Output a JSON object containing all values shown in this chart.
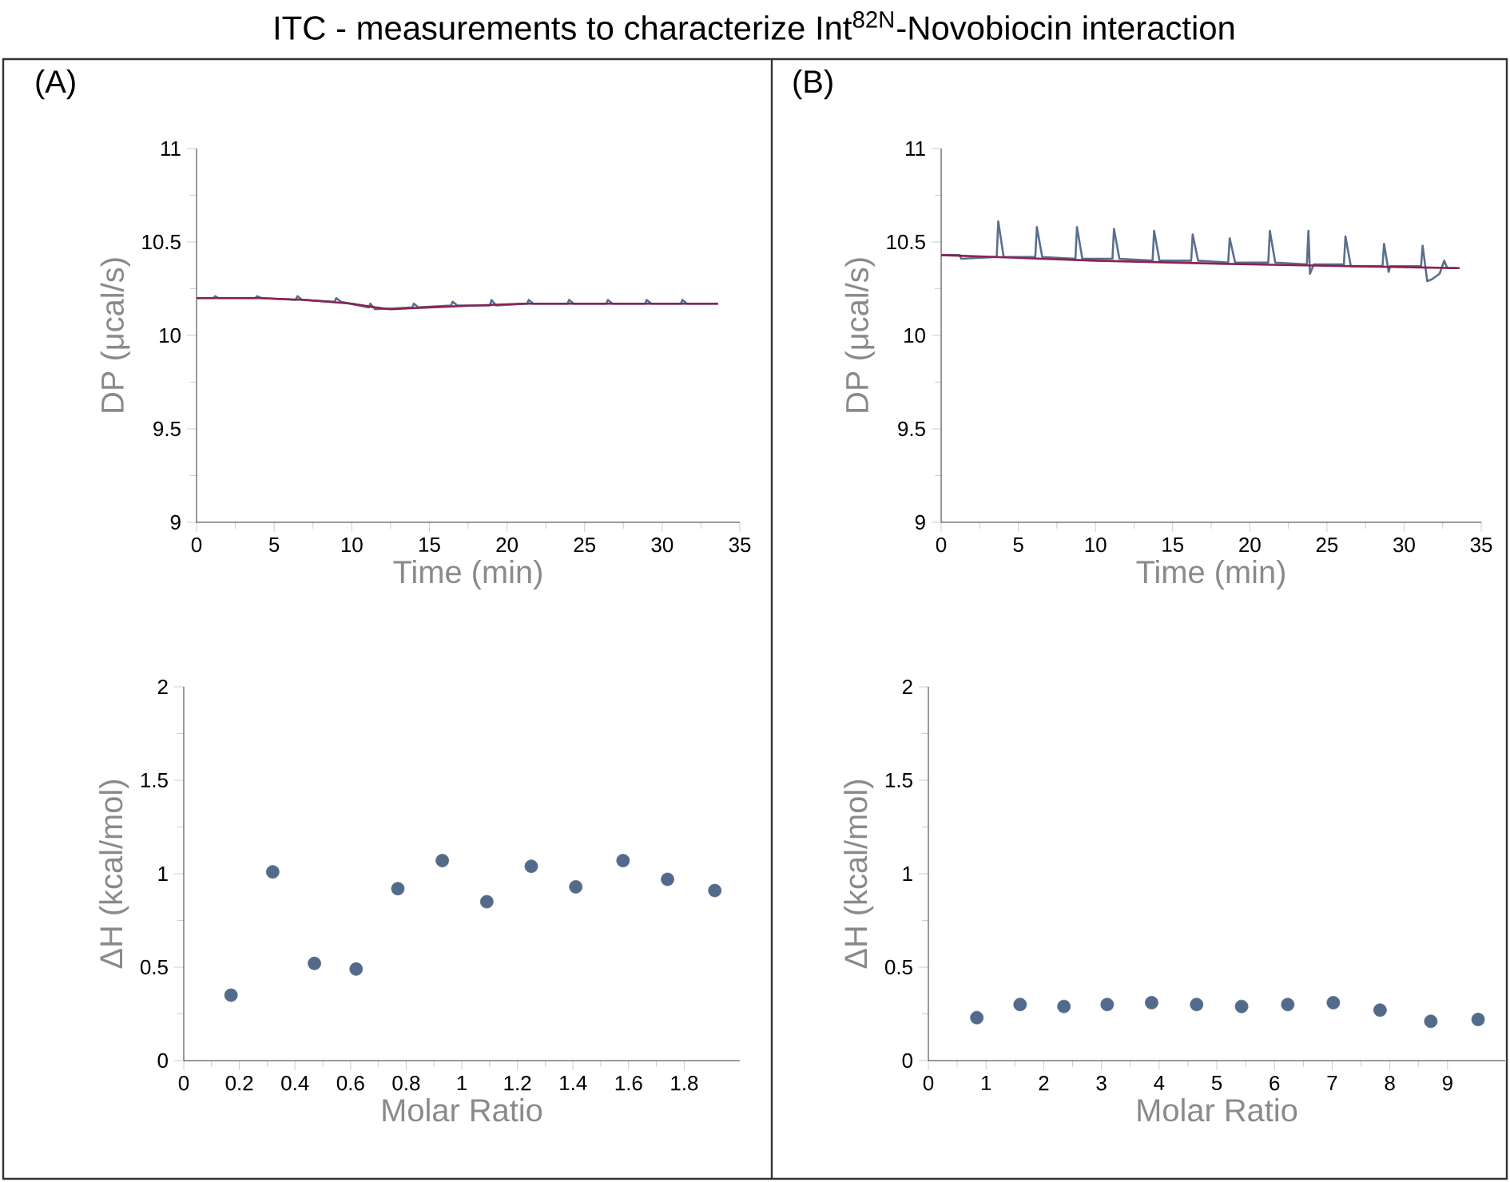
{
  "chart_data": [
    {
      "type": "line",
      "title": "ITC - measurements to characterize Int$^{82N}$-Novobiocin interaction",
      "annotations": [
        "(A)"
      ],
      "xlabel": "Time (min)",
      "ylabel": "DP (μcal/s)",
      "xlim": [
        0,
        35
      ],
      "ylim": [
        9,
        11
      ],
      "xticks": [
        0,
        5,
        10,
        15,
        20,
        25,
        30,
        35
      ],
      "yticks": [
        9,
        9.5,
        10,
        10.5,
        11
      ],
      "series": [
        {
          "color": "#5a6f8f",
          "x": [
            0,
            1.1,
            1.2,
            1.4,
            3.8,
            3.9,
            4.2,
            6.4,
            6.5,
            6.8,
            8.9,
            9,
            9.3,
            11.1,
            11.2,
            11.5,
            13.9,
            14,
            14.3,
            16.4,
            16.5,
            16.8,
            18.9,
            19,
            19.3,
            21.3,
            21.4,
            21.7,
            23.9,
            24,
            24.3,
            26.4,
            26.5,
            26.8,
            28.9,
            29,
            29.3,
            31.2,
            31.3,
            31.6,
            33.6
          ],
          "values": [
            10.2,
            10.2,
            10.21,
            10.2,
            10.2,
            10.21,
            10.2,
            10.19,
            10.21,
            10.19,
            10.18,
            10.2,
            10.18,
            10.15,
            10.17,
            10.14,
            10.15,
            10.17,
            10.15,
            10.16,
            10.18,
            10.16,
            10.16,
            10.19,
            10.16,
            10.17,
            10.19,
            10.17,
            10.17,
            10.19,
            10.17,
            10.17,
            10.19,
            10.17,
            10.17,
            10.19,
            10.17,
            10.17,
            10.19,
            10.17,
            10.17
          ]
        },
        {
          "color": "#8b2252",
          "x": [
            0,
            4,
            7,
            10,
            11.5,
            12.5,
            15,
            18,
            21,
            25,
            33.6
          ],
          "values": [
            10.2,
            10.2,
            10.19,
            10.17,
            10.15,
            10.14,
            10.15,
            10.16,
            10.17,
            10.17,
            10.17
          ]
        }
      ]
    },
    {
      "type": "line",
      "annotations": [
        "(B)"
      ],
      "xlabel": "Time (min)",
      "ylabel": "DP (μcal/s)",
      "xlim": [
        0,
        35
      ],
      "ylim": [
        9,
        11
      ],
      "xticks": [
        0,
        5,
        10,
        15,
        20,
        25,
        30,
        35
      ],
      "yticks": [
        9,
        9.5,
        10,
        10.5,
        11
      ],
      "series": [
        {
          "color": "#5a6f8f",
          "x": [
            0,
            1.2,
            1.3,
            3.6,
            3.7,
            4.05,
            6.1,
            6.2,
            6.55,
            8.7,
            8.8,
            9.15,
            11.1,
            11.2,
            11.55,
            13.7,
            13.8,
            14.15,
            16.2,
            16.3,
            16.65,
            18.6,
            18.7,
            19.05,
            21.2,
            21.3,
            21.65,
            23.7,
            23.8,
            23.9,
            24.15,
            26.1,
            26.2,
            26.55,
            28.6,
            28.7,
            29,
            29.1,
            31.1,
            31.2,
            31.5,
            31.8,
            32.3,
            32.6,
            32.8,
            33.5
          ],
          "values": [
            10.43,
            10.43,
            10.41,
            10.42,
            10.61,
            10.42,
            10.42,
            10.58,
            10.42,
            10.41,
            10.58,
            10.41,
            10.41,
            10.57,
            10.41,
            10.4,
            10.56,
            10.4,
            10.4,
            10.54,
            10.4,
            10.39,
            10.52,
            10.39,
            10.39,
            10.56,
            10.39,
            10.38,
            10.56,
            10.33,
            10.38,
            10.38,
            10.53,
            10.37,
            10.37,
            10.49,
            10.34,
            10.37,
            10.37,
            10.48,
            10.29,
            10.3,
            10.33,
            10.4,
            10.36,
            10.36
          ]
        },
        {
          "color": "#8b2252",
          "x": [
            0,
            10,
            20,
            33.6
          ],
          "values": [
            10.43,
            10.4,
            10.38,
            10.36
          ]
        }
      ]
    },
    {
      "type": "scatter",
      "xlabel": "Molar Ratio",
      "ylabel": "ΔH (kcal/mol)",
      "xlim": [
        0,
        2
      ],
      "ylim": [
        0,
        2
      ],
      "xticks": [
        0,
        0.2,
        0.4,
        0.6,
        0.8,
        1,
        1.2,
        1.4,
        1.6,
        1.8
      ],
      "yticks": [
        0,
        0.5,
        1,
        1.5,
        2
      ],
      "series": [
        {
          "color": "#536a8a",
          "x": [
            0.17,
            0.32,
            0.47,
            0.62,
            0.77,
            0.93,
            1.09,
            1.25,
            1.41,
            1.58,
            1.74,
            1.91
          ],
          "values": [
            0.35,
            1.01,
            0.52,
            0.49,
            0.92,
            1.07,
            0.85,
            1.04,
            0.93,
            1.07,
            0.97,
            0.91
          ]
        }
      ]
    },
    {
      "type": "scatter",
      "xlabel": "Molar Ratio",
      "ylabel": "ΔH (kcal/mol)",
      "xlim": [
        0,
        10
      ],
      "ylim": [
        0,
        2
      ],
      "xticks": [
        0,
        1,
        2,
        3,
        4,
        5,
        6,
        7,
        8,
        9
      ],
      "yticks": [
        0,
        0.5,
        1,
        1.5,
        2
      ],
      "series": [
        {
          "color": "#536a8a",
          "x": [
            0.84,
            1.59,
            2.35,
            3.1,
            3.87,
            4.65,
            5.43,
            6.23,
            7.02,
            7.83,
            8.71,
            9.53
          ],
          "values": [
            0.23,
            0.3,
            0.29,
            0.3,
            0.31,
            0.3,
            0.29,
            0.3,
            0.31,
            0.27,
            0.21,
            0.22
          ]
        }
      ]
    }
  ]
}
